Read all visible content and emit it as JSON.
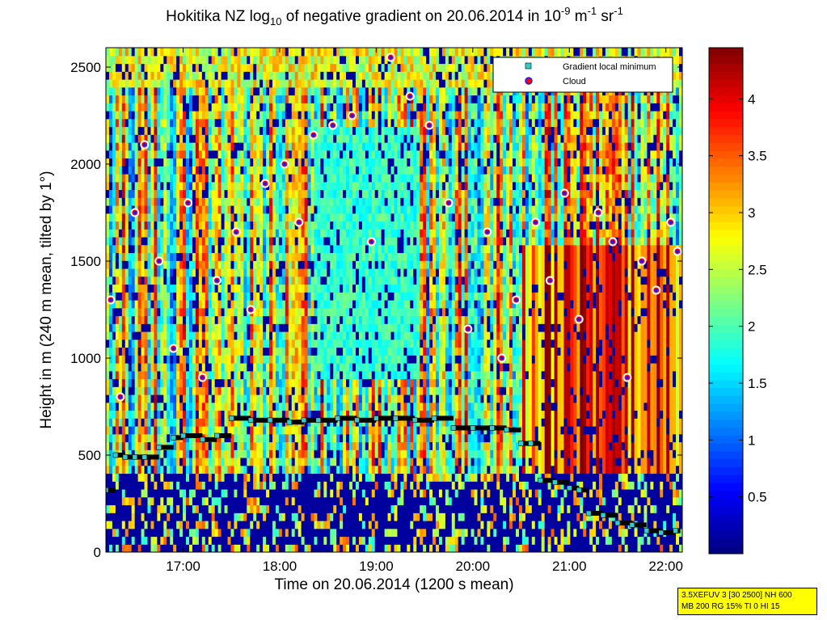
{
  "title": {
    "prefix": "Hokitika NZ log",
    "sub": "10",
    "mid": " of negative gradient on 20.06.2014 in 10",
    "sup1": "-9",
    "unit1": " m",
    "sup2": "-1",
    "unit2": " sr",
    "sup3": "-1"
  },
  "info_box": {
    "line1": "3.5XEFUV 3 [30 2500] NH 600",
    "line2": "MB 200 RG 15% TI 0 HI 15"
  },
  "chart_data": {
    "type": "heatmap",
    "xlabel": "Time on 20.06.2014 (1200 s mean)",
    "ylabel": "Height in m (240 m mean, tilted by 1°)",
    "xlim_hours": [
      16.2,
      22.17
    ],
    "ylim": [
      0,
      2600
    ],
    "x_ticks": [
      {
        "value": 17,
        "label": "17:00"
      },
      {
        "value": 18,
        "label": "18:00"
      },
      {
        "value": 19,
        "label": "19:00"
      },
      {
        "value": 20,
        "label": "20:00"
      },
      {
        "value": 21,
        "label": "21:00"
      },
      {
        "value": 22,
        "label": "22:00"
      }
    ],
    "y_ticks": [
      0,
      500,
      1000,
      1500,
      2000,
      2500
    ],
    "colorbar": {
      "range": [
        0,
        4.45
      ],
      "ticks": [
        0.5,
        1,
        1.5,
        2,
        2.5,
        3,
        3.5,
        4
      ],
      "colormap": "jet"
    },
    "legend": {
      "placement": "top-right",
      "entries": [
        {
          "label": "Gradient local minimum",
          "marker": "square",
          "color": "#33cccc"
        },
        {
          "label": "Cloud",
          "marker": "circle",
          "color": "#ff0000"
        }
      ]
    },
    "gradient_local_minimum": {
      "x": [
        16.2,
        16.3,
        16.4,
        16.5,
        16.6,
        16.75,
        16.9,
        17.0,
        17.2,
        17.35,
        17.5,
        17.7,
        17.9,
        18.1,
        18.25,
        18.4,
        18.6,
        18.8,
        19.0,
        19.2,
        19.4,
        19.6,
        19.8,
        20.0,
        20.2,
        20.35,
        20.5,
        20.6,
        20.7,
        20.85,
        21.0,
        21.1,
        21.2,
        21.35,
        21.5,
        21.65,
        21.8,
        21.95,
        22.1
      ],
      "y": [
        320,
        500,
        490,
        490,
        490,
        540,
        590,
        600,
        580,
        600,
        690,
        680,
        680,
        670,
        680,
        680,
        690,
        680,
        690,
        690,
        680,
        690,
        640,
        640,
        640,
        630,
        560,
        560,
        370,
        360,
        330,
        320,
        200,
        190,
        150,
        140,
        110,
        100,
        110
      ]
    },
    "cloud": {
      "x": [
        16.25,
        16.35,
        16.5,
        16.6,
        16.75,
        16.9,
        17.05,
        17.2,
        17.35,
        17.55,
        17.7,
        17.85,
        18.05,
        18.2,
        18.35,
        18.55,
        18.75,
        18.95,
        19.15,
        19.35,
        19.55,
        19.75,
        19.95,
        20.15,
        20.3,
        20.45,
        20.65,
        20.8,
        20.95,
        21.1,
        21.3,
        21.45,
        21.6,
        21.75,
        21.9,
        22.05,
        22.12
      ],
      "y": [
        1300,
        800,
        1750,
        2100,
        1500,
        1050,
        1800,
        900,
        1400,
        1650,
        1250,
        1900,
        2000,
        1700,
        2150,
        2200,
        2250,
        1600,
        2550,
        2350,
        2200,
        1800,
        1150,
        1650,
        1000,
        1300,
        1700,
        1400,
        1850,
        1200,
        1750,
        1600,
        900,
        1500,
        1350,
        1700,
        1550
      ]
    }
  }
}
